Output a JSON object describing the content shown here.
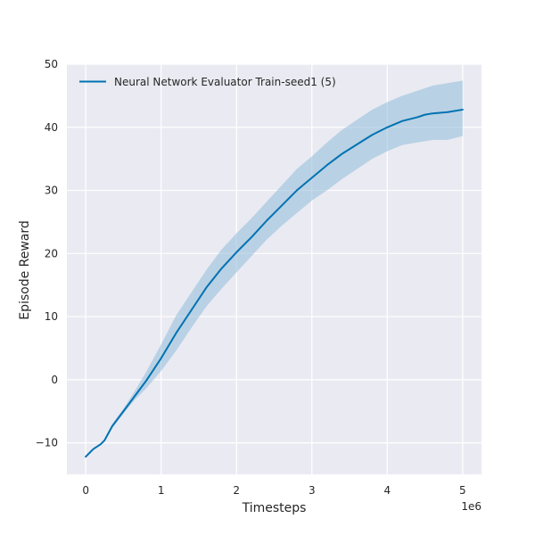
{
  "chart_data": {
    "type": "line",
    "xlabel": "Timesteps",
    "ylabel": "Episode Reward",
    "x_offset_label": "1e6",
    "xlim": [
      -0.25,
      5.25
    ],
    "ylim": [
      -15,
      50
    ],
    "xticks": [
      0,
      1,
      2,
      3,
      4,
      5
    ],
    "yticks": [
      -10,
      0,
      10,
      20,
      30,
      40,
      50
    ],
    "xtick_labels": [
      "0",
      "1",
      "2",
      "3",
      "4",
      "5"
    ],
    "ytick_labels": [
      "−10",
      "0",
      "10",
      "20",
      "30",
      "40",
      "50"
    ],
    "grid": true,
    "legend_position": "upper-left",
    "colors": {
      "line": "#0072b2",
      "band": "#8fbbd9",
      "plot_bg": "#eaeaf2",
      "grid": "#ffffff"
    },
    "series": [
      {
        "name": "Neural Network Evaluator Train-seed1 (5)",
        "x": [
          0,
          0.1,
          0.2,
          0.25,
          0.35,
          0.5,
          0.65,
          0.8,
          1.0,
          1.2,
          1.4,
          1.6,
          1.8,
          2.0,
          2.2,
          2.4,
          2.6,
          2.8,
          3.0,
          3.2,
          3.4,
          3.6,
          3.8,
          4.0,
          4.2,
          4.4,
          4.5,
          4.6,
          4.8,
          5.0
        ],
        "y": [
          -12.2,
          -11.0,
          -10.2,
          -9.6,
          -7.4,
          -5.0,
          -2.6,
          -0.2,
          3.4,
          7.4,
          11.0,
          14.6,
          17.6,
          20.2,
          22.6,
          25.2,
          27.6,
          30.0,
          32.0,
          34.0,
          35.8,
          37.3,
          38.8,
          40.0,
          41.0,
          41.6,
          42.0,
          42.2,
          42.4,
          42.8
        ],
        "lower": [
          -12.2,
          -11.0,
          -10.2,
          -9.8,
          -7.6,
          -5.4,
          -3.2,
          -1.4,
          1.4,
          4.6,
          8.2,
          11.6,
          14.4,
          17.0,
          19.6,
          22.2,
          24.4,
          26.4,
          28.4,
          30.0,
          31.8,
          33.4,
          35.0,
          36.2,
          37.2,
          37.6,
          37.8,
          38.0,
          38.0,
          38.6
        ],
        "upper": [
          -12.2,
          -11.0,
          -10.2,
          -9.4,
          -7.0,
          -4.6,
          -1.8,
          1.2,
          5.6,
          10.2,
          13.8,
          17.4,
          20.6,
          23.2,
          25.6,
          28.2,
          30.8,
          33.4,
          35.4,
          37.6,
          39.6,
          41.2,
          42.8,
          44.0,
          45.0,
          45.8,
          46.2,
          46.6,
          47.0,
          47.4
        ]
      }
    ]
  }
}
